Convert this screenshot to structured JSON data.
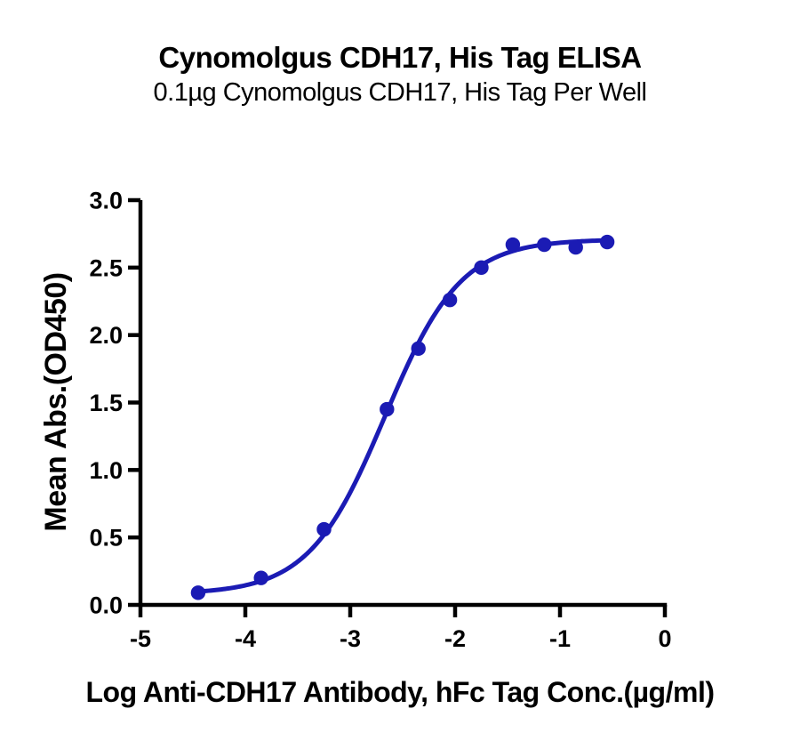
{
  "chart_data": {
    "type": "scatter",
    "title": "Cynomolgus CDH17, His Tag ELISA",
    "subtitle": "0.1µg Cynomolgus CDH17, His Tag Per Well",
    "xlabel": "Log Anti-CDH17 Antibody, hFc Tag Conc.(µg/ml)",
    "ylabel": "Mean Abs.(OD450)",
    "xlim": [
      -5,
      0
    ],
    "ylim": [
      0,
      3
    ],
    "x_ticks": [
      -5,
      -4,
      -3,
      -2,
      -1,
      0
    ],
    "x_tick_labels": [
      "-5",
      "-4",
      "-3",
      "-2",
      "-1",
      "0"
    ],
    "y_ticks": [
      0,
      0.5,
      1,
      1.5,
      2,
      2.5,
      3
    ],
    "y_tick_labels": [
      "0.0",
      "0.5",
      "1.0",
      "1.5",
      "2.0",
      "2.5",
      "3.0"
    ],
    "grid": false,
    "legend": "none",
    "axis_color": "#000000",
    "series": [
      {
        "name": "Anti-CDH17 Antibody, hFc Tag",
        "color": "#1b1bb4",
        "marker": "circle",
        "points": [
          {
            "x": -4.45,
            "y": 0.09
          },
          {
            "x": -3.85,
            "y": 0.2
          },
          {
            "x": -3.25,
            "y": 0.56
          },
          {
            "x": -2.65,
            "y": 1.45
          },
          {
            "x": -2.35,
            "y": 1.9
          },
          {
            "x": -2.05,
            "y": 2.26
          },
          {
            "x": -1.75,
            "y": 2.5
          },
          {
            "x": -1.45,
            "y": 2.67
          },
          {
            "x": -1.15,
            "y": 2.67
          },
          {
            "x": -0.85,
            "y": 2.65
          },
          {
            "x": -0.55,
            "y": 2.69
          }
        ],
        "fit_curve": {
          "model": "4PL",
          "bottom": 0.08,
          "top": 2.71,
          "logEC50": -2.67,
          "hill": 1.2
        }
      }
    ]
  }
}
